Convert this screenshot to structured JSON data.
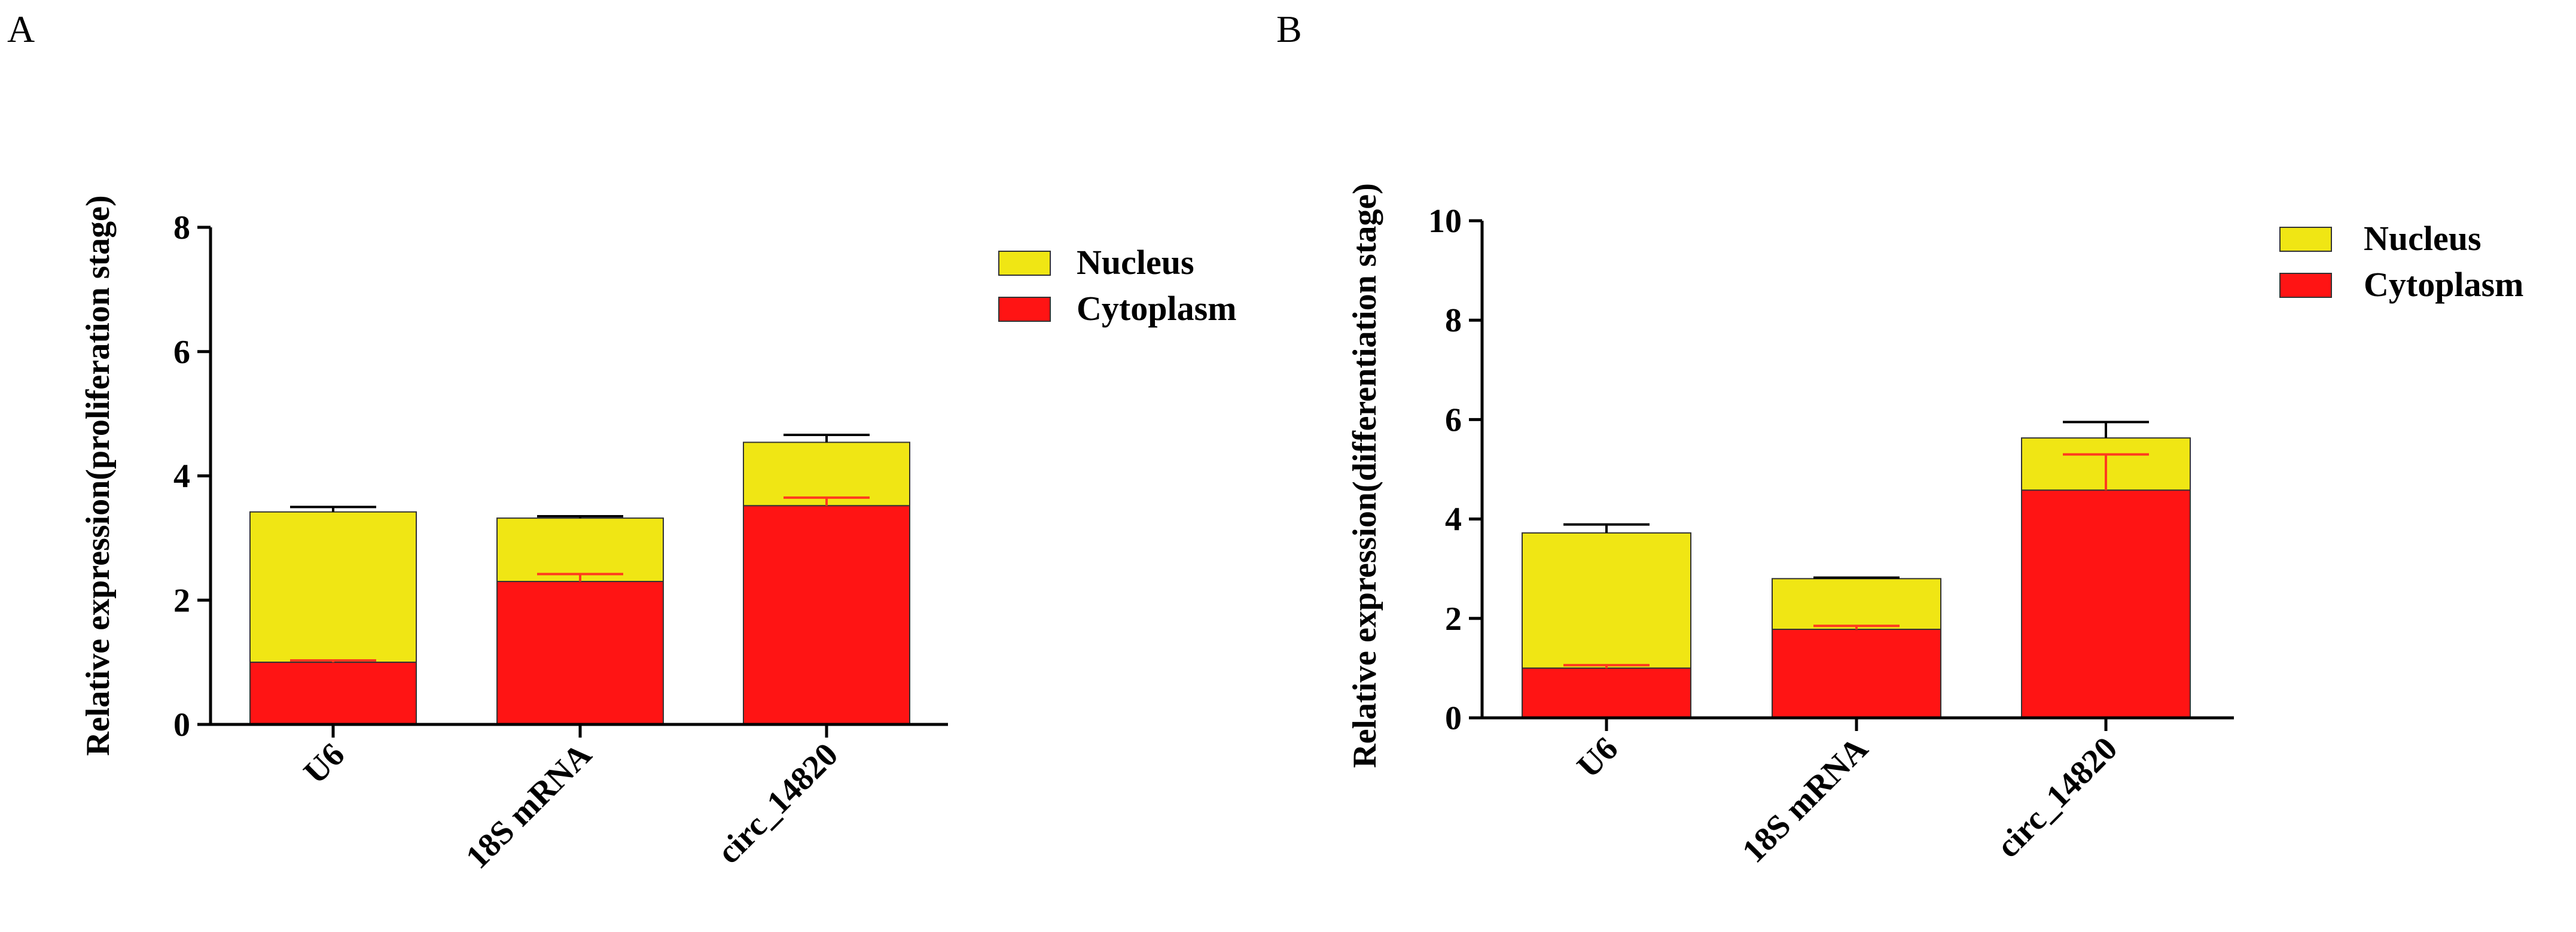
{
  "colors": {
    "nucleus": "#F0E614",
    "cytoplasm": "#FF1414",
    "axis": "#000000",
    "bar_outline": "#333333",
    "err_nucleus": "#000000",
    "err_cytoplasm": "#FF3B1E"
  },
  "chart_data": [
    {
      "panel": "A",
      "type": "bar",
      "stacked": true,
      "categories": [
        "U6",
        "18S mRNA",
        "circ_14820"
      ],
      "ylabel": "Relative expression(proliferation stage)",
      "ylim": [
        0,
        8
      ],
      "yticks": [
        "0",
        "2",
        "4",
        "6",
        "8"
      ],
      "legend": [
        "Nucleus",
        "Cytoplasm"
      ],
      "legend_position": "top-right",
      "series": [
        {
          "name": "Cytoplasm",
          "values": [
            1.0,
            2.3,
            3.52
          ],
          "errors": [
            0.03,
            0.12,
            0.13
          ]
        },
        {
          "name": "Nucleus",
          "values": [
            2.42,
            1.02,
            1.02
          ],
          "errors": [
            0.08,
            0.03,
            0.12
          ]
        }
      ]
    },
    {
      "panel": "B",
      "type": "bar",
      "stacked": true,
      "categories": [
        "U6",
        "18S mRNA",
        "circ_14820"
      ],
      "ylabel": "Relative expression(differentiation stage)",
      "ylim": [
        0,
        10
      ],
      "yticks": [
        "0",
        "2",
        "4",
        "6",
        "8",
        "10"
      ],
      "legend": [
        "Nucleus",
        "Cytoplasm"
      ],
      "legend_position": "top-right",
      "series": [
        {
          "name": "Cytoplasm",
          "values": [
            1.0,
            1.78,
            4.58
          ],
          "errors": [
            0.06,
            0.07,
            0.72
          ]
        },
        {
          "name": "Nucleus",
          "values": [
            2.72,
            1.02,
            1.05
          ],
          "errors": [
            0.17,
            0.02,
            0.32
          ]
        }
      ]
    }
  ]
}
